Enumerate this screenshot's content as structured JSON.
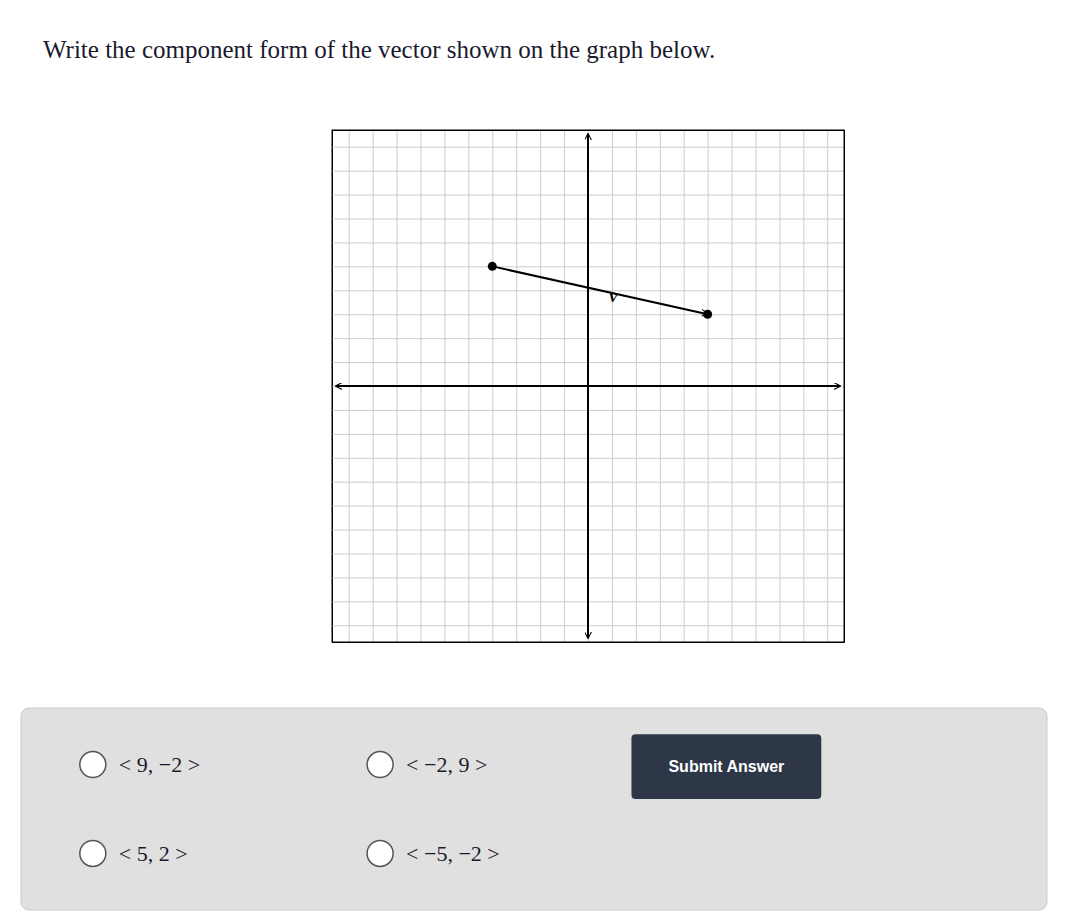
{
  "chart_data": {
    "type": "vector",
    "title": "Write the component form of the vector shown on the graph below.",
    "xlim": [
      -10.7,
      10.7
    ],
    "ylim": [
      -10.7,
      10.7
    ],
    "xticks": [
      -10,
      -9,
      -8,
      -7,
      -6,
      -5,
      -4,
      -3,
      -2,
      -1,
      0,
      1,
      2,
      3,
      4,
      5,
      6,
      7,
      8,
      9,
      10
    ],
    "yticks": [
      -10,
      -9,
      -8,
      -7,
      -6,
      -5,
      -4,
      -3,
      -2,
      -1,
      0,
      1,
      2,
      3,
      4,
      5,
      6,
      7,
      8,
      9,
      10
    ],
    "grid": true,
    "tick_labels": false,
    "series": [
      {
        "name": "v",
        "color": "#000000",
        "marker": "circle",
        "x": [
          -4,
          5
        ],
        "values": [
          5,
          3
        ]
      }
    ],
    "options": [
      "< 9, −2 >",
      "< −2, 9 >",
      "< 5, 2 >",
      "< −5, −2 >"
    ],
    "submit_button": "Submit Answer"
  }
}
